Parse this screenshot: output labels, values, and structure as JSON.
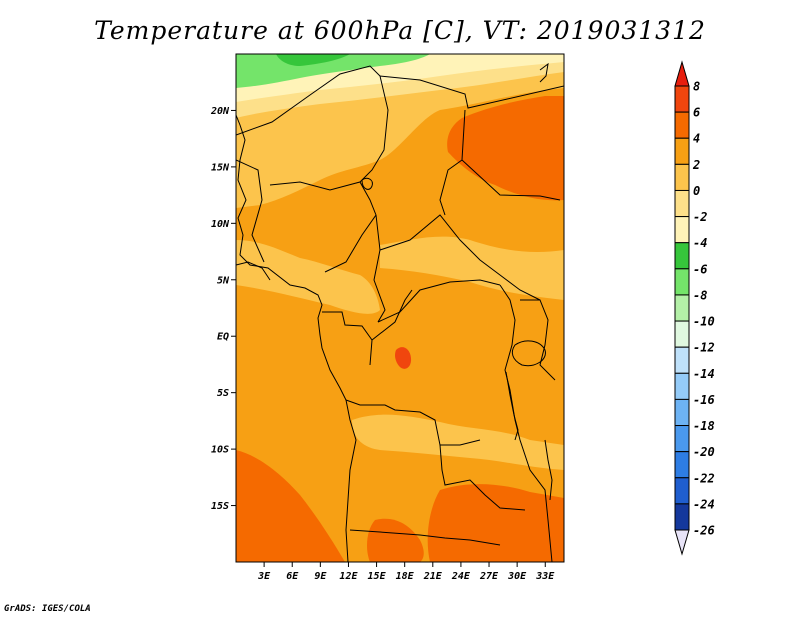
{
  "title": "Temperature at 600hPa [C], VT: 2019031312",
  "credit": "GrADS: IGES/COLA",
  "map": {
    "lon_range": [
      0,
      35
    ],
    "lat_range": [
      -20,
      25
    ],
    "lat_ticks": [
      {
        "lat": 20,
        "label": "20N"
      },
      {
        "lat": 15,
        "label": "15N"
      },
      {
        "lat": 10,
        "label": "10N"
      },
      {
        "lat": 5,
        "label": "5N"
      },
      {
        "lat": 0,
        "label": "EQ"
      },
      {
        "lat": -5,
        "label": "5S"
      },
      {
        "lat": -10,
        "label": "10S"
      },
      {
        "lat": -15,
        "label": "15S"
      }
    ],
    "lon_ticks": [
      {
        "lon": 3,
        "label": "3E"
      },
      {
        "lon": 6,
        "label": "6E"
      },
      {
        "lon": 9,
        "label": "9E"
      },
      {
        "lon": 12,
        "label": "12E"
      },
      {
        "lon": 15,
        "label": "15E"
      },
      {
        "lon": 18,
        "label": "18E"
      },
      {
        "lon": 21,
        "label": "21E"
      },
      {
        "lon": 24,
        "label": "24E"
      },
      {
        "lon": 27,
        "label": "27E"
      },
      {
        "lon": 30,
        "label": "30E"
      },
      {
        "lon": 33,
        "label": "33E"
      }
    ]
  },
  "colorbar": {
    "levels": [
      "8",
      "6",
      "4",
      "2",
      "0",
      "-2",
      "-4",
      "-6",
      "-8",
      "-10",
      "-12",
      "-14",
      "-16",
      "-18",
      "-20",
      "-22",
      "-24",
      "-26"
    ],
    "colors": [
      "#e81e0e",
      "#f0460e",
      "#f56a00",
      "#f7a014",
      "#fcc44c",
      "#fde08a",
      "#fff3b8",
      "#36c63b",
      "#74e46a",
      "#b4f0a8",
      "#e0f8e0",
      "#bfe1fa",
      "#94cbf8",
      "#6db3f4",
      "#4a99ee",
      "#2e7de4",
      "#1f5ecf",
      "#14389c",
      "#0b1c70",
      "#e8e4f8"
    ]
  }
}
